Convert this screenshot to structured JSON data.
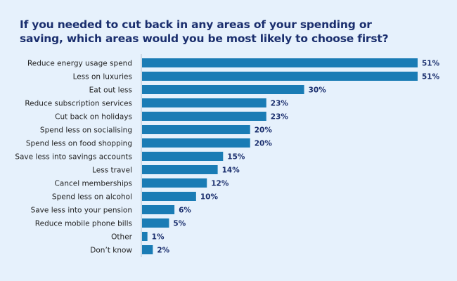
{
  "chart_data": {
    "type": "bar",
    "orientation": "horizontal",
    "title": "If you needed to cut back in any areas of your spending or saving, which areas would you be most likely to choose first?",
    "categories": [
      "Reduce energy usage spend",
      "Less on luxuries",
      "Eat out less",
      "Reduce subscription services",
      "Cut back on holidays",
      "Spend less on socialising",
      "Spend less on food shopping",
      "Save less into savings accounts",
      "Less travel",
      "Cancel memberships",
      "Spend less on alcohol",
      "Save less into your pension",
      "Reduce mobile phone bills",
      "Other",
      "Don’t know"
    ],
    "values": [
      51,
      51,
      30,
      23,
      23,
      20,
      20,
      15,
      14,
      12,
      10,
      6,
      5,
      1,
      2
    ],
    "value_suffix": "%",
    "xlim": [
      0,
      51
    ],
    "grid": false,
    "colors": {
      "bar": "#1a7cb5",
      "title": "#1b2f6e",
      "background": "#e6f1fc",
      "value_label": "#1b2f6e"
    }
  }
}
